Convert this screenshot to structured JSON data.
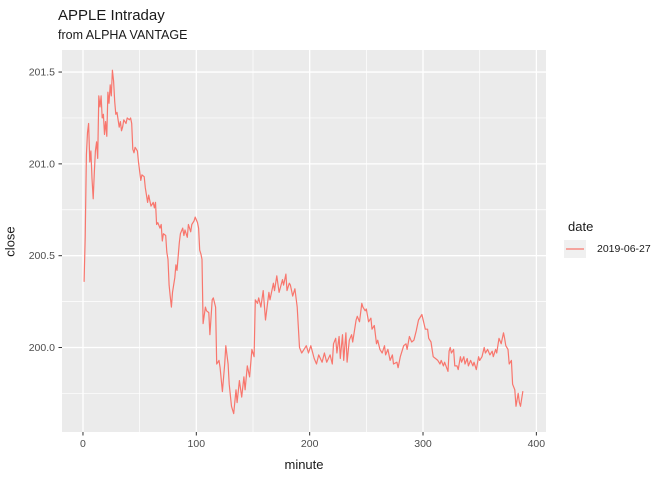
{
  "title": "APPLE Intraday",
  "subtitle": "from ALPHA VANTAGE",
  "legend": {
    "title": "date",
    "entries": [
      {
        "label": "2019-06-27",
        "color": "#F8766D"
      }
    ]
  },
  "colors": {
    "panel": "#EBEBEB",
    "grid": "#FFFFFF",
    "line": "#F8766D",
    "axis_text": "#4D4D4D",
    "tick": "#333333",
    "legend_key": "#F0F0F0",
    "text": "#1A1A1A"
  },
  "chart_data": {
    "type": "line",
    "title": "APPLE Intraday",
    "subtitle": "from ALPHA VANTAGE",
    "xlabel": "minute",
    "ylabel": "close",
    "xlim": [
      -18.5,
      408.5
    ],
    "ylim": [
      199.54,
      201.62
    ],
    "x_ticks": [
      0,
      100,
      200,
      300,
      400
    ],
    "x_minor_ticks": [
      50,
      150,
      250,
      350
    ],
    "y_ticks": [
      200.0,
      200.5,
      201.0,
      201.5
    ],
    "y_minor_ticks": [
      199.75,
      200.25,
      200.75,
      201.25
    ],
    "grid": true,
    "legend_position": "right",
    "series": [
      {
        "name": "2019-06-27",
        "color": "#F8766D",
        "points": [
          [
            1,
            200.36
          ],
          [
            2,
            200.6
          ],
          [
            3,
            201.05
          ],
          [
            4,
            201.17
          ],
          [
            5,
            201.22
          ],
          [
            6,
            201.01
          ],
          [
            7,
            201.07
          ],
          [
            8,
            200.92
          ],
          [
            9,
            200.81
          ],
          [
            10,
            200.95
          ],
          [
            11,
            201.07
          ],
          [
            12,
            201.12
          ],
          [
            13,
            201.03
          ],
          [
            14,
            201.37
          ],
          [
            15,
            201.31
          ],
          [
            16,
            201.37
          ],
          [
            17,
            201.25
          ],
          [
            18,
            201.27
          ],
          [
            19,
            201.16
          ],
          [
            20,
            201.23
          ],
          [
            21,
            201.15
          ],
          [
            22,
            201.39
          ],
          [
            23,
            201.33
          ],
          [
            24,
            201.43
          ],
          [
            25,
            201.37
          ],
          [
            26,
            201.51
          ],
          [
            27,
            201.45
          ],
          [
            28,
            201.34
          ],
          [
            29,
            201.27
          ],
          [
            30,
            201.28
          ],
          [
            31,
            201.24
          ],
          [
            32,
            201.2
          ],
          [
            33,
            201.23
          ],
          [
            34,
            201.18
          ],
          [
            35,
            201.2
          ],
          [
            36,
            201.24
          ],
          [
            38,
            201.22
          ],
          [
            39,
            201.25
          ],
          [
            41,
            201.24
          ],
          [
            42,
            201.25
          ],
          [
            43,
            201.22
          ],
          [
            44,
            201.08
          ],
          [
            45,
            201.06
          ],
          [
            46,
            201.09
          ],
          [
            48,
            201.07
          ],
          [
            49,
            201.01
          ],
          [
            51,
            200.91
          ],
          [
            52,
            200.94
          ],
          [
            54,
            200.93
          ],
          [
            55,
            200.87
          ],
          [
            57,
            200.79
          ],
          [
            58,
            200.83
          ],
          [
            59,
            200.8
          ],
          [
            60,
            200.77
          ],
          [
            62,
            200.79
          ],
          [
            63,
            200.76
          ],
          [
            64,
            200.79
          ],
          [
            65,
            200.67
          ],
          [
            66,
            200.68
          ],
          [
            68,
            200.65
          ],
          [
            69,
            200.67
          ],
          [
            70,
            200.58
          ],
          [
            71,
            200.62
          ],
          [
            73,
            200.61
          ],
          [
            74,
            200.52
          ],
          [
            75,
            200.48
          ],
          [
            76,
            200.34
          ],
          [
            77,
            200.28
          ],
          [
            78,
            200.22
          ],
          [
            79,
            200.3
          ],
          [
            81,
            200.38
          ],
          [
            82,
            200.45
          ],
          [
            83,
            200.42
          ],
          [
            85,
            200.57
          ],
          [
            86,
            200.62
          ],
          [
            88,
            200.65
          ],
          [
            89,
            200.61
          ],
          [
            90,
            200.64
          ],
          [
            92,
            200.6
          ],
          [
            93,
            200.67
          ],
          [
            95,
            200.63
          ],
          [
            96,
            200.67
          ],
          [
            98,
            200.69
          ],
          [
            99,
            200.71
          ],
          [
            101,
            200.68
          ],
          [
            102,
            200.65
          ],
          [
            103,
            200.53
          ],
          [
            104,
            200.51
          ],
          [
            105,
            200.48
          ],
          [
            106,
            200.13
          ],
          [
            108,
            200.22
          ],
          [
            109,
            200.2
          ],
          [
            111,
            200.19
          ],
          [
            112,
            200.07
          ],
          [
            114,
            200.26
          ],
          [
            115,
            200.27
          ],
          [
            117,
            200.22
          ],
          [
            118,
            199.91
          ],
          [
            120,
            199.93
          ],
          [
            121,
            199.89
          ],
          [
            123,
            199.76
          ],
          [
            125,
            199.91
          ],
          [
            126,
            200.01
          ],
          [
            128,
            199.91
          ],
          [
            129,
            199.8
          ],
          [
            131,
            199.68
          ],
          [
            133,
            199.64
          ],
          [
            135,
            199.77
          ],
          [
            136,
            199.7
          ],
          [
            138,
            199.82
          ],
          [
            140,
            199.73
          ],
          [
            142,
            199.84
          ],
          [
            143,
            199.77
          ],
          [
            145,
            199.9
          ],
          [
            147,
            199.84
          ],
          [
            149,
            199.99
          ],
          [
            151,
            199.95
          ],
          [
            152,
            200.26
          ],
          [
            154,
            200.24
          ],
          [
            155,
            200.27
          ],
          [
            157,
            200.22
          ],
          [
            159,
            200.31
          ],
          [
            161,
            200.15
          ],
          [
            164,
            200.3
          ],
          [
            165,
            200.26
          ],
          [
            168,
            200.35
          ],
          [
            169,
            200.31
          ],
          [
            171,
            200.39
          ],
          [
            173,
            200.3
          ],
          [
            176,
            200.37
          ],
          [
            177,
            200.34
          ],
          [
            179,
            200.4
          ],
          [
            180,
            200.31
          ],
          [
            182,
            200.35
          ],
          [
            183,
            200.34
          ],
          [
            185,
            200.28
          ],
          [
            187,
            200.32
          ],
          [
            189,
            200.22
          ],
          [
            191,
            200.0
          ],
          [
            193,
            199.97
          ],
          [
            195,
            199.99
          ],
          [
            197,
            200.01
          ],
          [
            199,
            199.97
          ],
          [
            201,
            200.01
          ],
          [
            204,
            199.94
          ],
          [
            206,
            199.91
          ],
          [
            208,
            199.96
          ],
          [
            211,
            199.92
          ],
          [
            213,
            199.97
          ],
          [
            215,
            199.92
          ],
          [
            218,
            199.96
          ],
          [
            220,
            199.91
          ],
          [
            221,
            200.02
          ],
          [
            223,
            200.05
          ],
          [
            224,
            199.97
          ],
          [
            226,
            200.06
          ],
          [
            227,
            199.94
          ],
          [
            229,
            200.07
          ],
          [
            230,
            199.93
          ],
          [
            232,
            200.08
          ],
          [
            233,
            199.92
          ],
          [
            235,
            200.04
          ],
          [
            237,
            200.07
          ],
          [
            238,
            200.03
          ],
          [
            241,
            200.15
          ],
          [
            242,
            200.17
          ],
          [
            244,
            200.14
          ],
          [
            246,
            200.24
          ],
          [
            247,
            200.22
          ],
          [
            249,
            200.2
          ],
          [
            250,
            200.21
          ],
          [
            252,
            200.14
          ],
          [
            254,
            200.16
          ],
          [
            255,
            200.1
          ],
          [
            257,
            200.12
          ],
          [
            259,
            200.02
          ],
          [
            260,
            200.04
          ],
          [
            262,
            199.99
          ],
          [
            264,
            199.97
          ],
          [
            266,
            200.01
          ],
          [
            267,
            199.96
          ],
          [
            269,
            199.99
          ],
          [
            271,
            199.93
          ],
          [
            273,
            199.96
          ],
          [
            274,
            199.91
          ],
          [
            277,
            199.92
          ],
          [
            278,
            199.89
          ],
          [
            280,
            199.95
          ],
          [
            283,
            200.01
          ],
          [
            285,
            200.02
          ],
          [
            286,
            199.99
          ],
          [
            288,
            200.06
          ],
          [
            290,
            200.03
          ],
          [
            292,
            200.04
          ],
          [
            294,
            200.09
          ],
          [
            296,
            200.15
          ],
          [
            299,
            200.18
          ],
          [
            302,
            200.1
          ],
          [
            304,
            200.1
          ],
          [
            305,
            200.05
          ],
          [
            307,
            200.03
          ],
          [
            309,
            199.95
          ],
          [
            311,
            199.94
          ],
          [
            313,
            199.93
          ],
          [
            315,
            199.91
          ],
          [
            316,
            199.93
          ],
          [
            318,
            199.9
          ],
          [
            319,
            199.92
          ],
          [
            322,
            199.87
          ],
          [
            323,
            199.98
          ],
          [
            324,
            200.0
          ],
          [
            325,
            199.97
          ],
          [
            327,
            199.99
          ],
          [
            328,
            199.9
          ],
          [
            330,
            199.9
          ],
          [
            331,
            199.88
          ],
          [
            333,
            199.95
          ],
          [
            334,
            199.92
          ],
          [
            336,
            199.95
          ],
          [
            337,
            199.91
          ],
          [
            339,
            199.94
          ],
          [
            340,
            199.9
          ],
          [
            342,
            199.93
          ],
          [
            344,
            199.9
          ],
          [
            345,
            199.92
          ],
          [
            347,
            199.88
          ],
          [
            349,
            199.95
          ],
          [
            350,
            199.93
          ],
          [
            352,
            199.95
          ],
          [
            354,
            200.0
          ],
          [
            355,
            199.97
          ],
          [
            357,
            199.99
          ],
          [
            359,
            199.96
          ],
          [
            361,
            199.98
          ],
          [
            362,
            199.95
          ],
          [
            364,
            199.99
          ],
          [
            365,
            199.97
          ],
          [
            367,
            200.05
          ],
          [
            369,
            200.02
          ],
          [
            371,
            200.08
          ],
          [
            372,
            200.05
          ],
          [
            373,
            200.01
          ],
          [
            375,
            199.99
          ],
          [
            376,
            199.91
          ],
          [
            378,
            199.93
          ],
          [
            379,
            199.8
          ],
          [
            381,
            199.77
          ],
          [
            382,
            199.68
          ],
          [
            384,
            199.75
          ],
          [
            385,
            199.7
          ],
          [
            386,
            199.68
          ],
          [
            388,
            199.76
          ]
        ]
      }
    ]
  }
}
